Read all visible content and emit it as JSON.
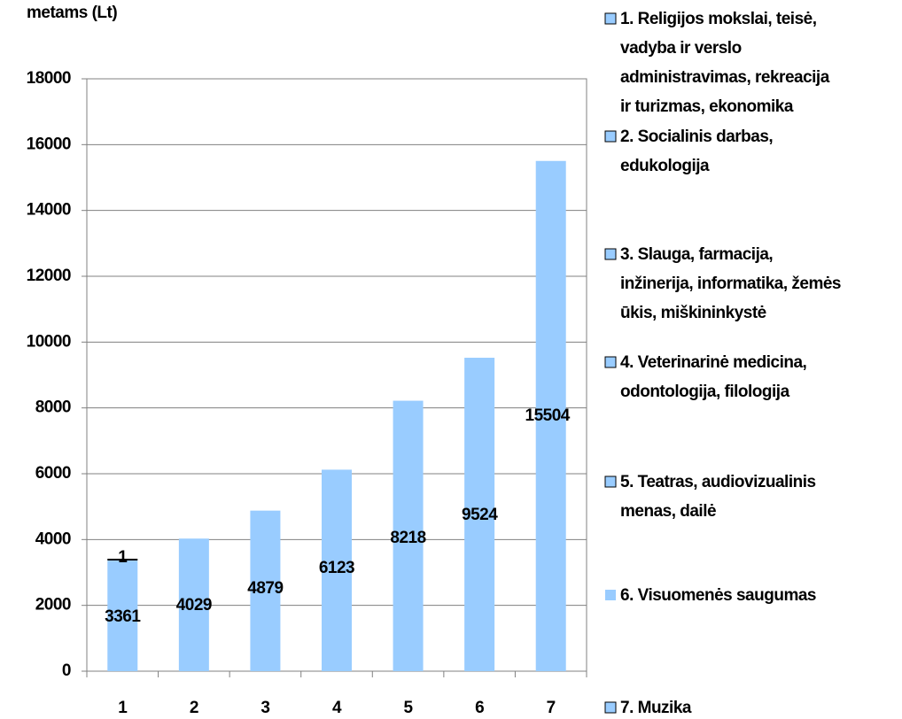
{
  "chart_data": {
    "type": "bar",
    "title": "metams (Lt)",
    "categories": [
      "1",
      "2",
      "3",
      "4",
      "5",
      "6",
      "7"
    ],
    "values": [
      3361,
      4029,
      4879,
      6123,
      8218,
      9524,
      15504
    ],
    "color": "#99ccff",
    "ylim": [
      0,
      18000
    ],
    "yticks": [
      0,
      2000,
      4000,
      6000,
      8000,
      10000,
      12000,
      14000,
      16000,
      18000
    ],
    "grid": true,
    "annotation": "1",
    "legend": [
      [
        "1. Religijos mokslai, teisė,",
        "vadyba ir verslo",
        "administravimas, rekreacija",
        "ir turizmas, ekonomika"
      ],
      [
        "2. Socialinis darbas,",
        "edukologija"
      ],
      [
        "3. Slauga, farmacija,",
        "inžinerija, informatika, žemės",
        "ūkis, miškininkystė"
      ],
      [
        "4. Veterinarinė medicina,",
        "odontologija, filologija"
      ],
      [
        "5. Teatras, audiovizualinis",
        "menas, dailė"
      ],
      [
        "6. Visuomenės saugumas"
      ],
      [
        "7. Muzika"
      ]
    ]
  }
}
